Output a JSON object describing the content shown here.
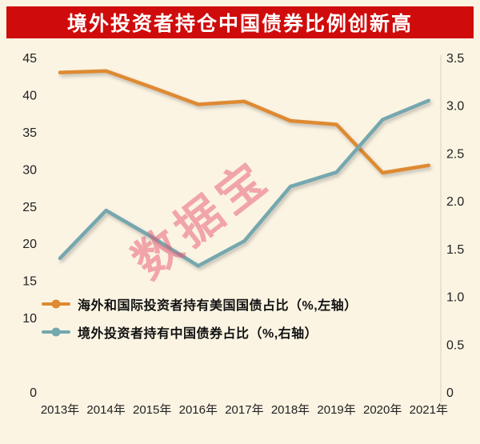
{
  "title": "境外投资者持仓中国债券比例创新高",
  "watermark": "数据宝",
  "colors": {
    "background": "#fbf4e3",
    "title_bg": "#cf0b0b",
    "title_text": "#ffffff",
    "series_us_treasury": "#de8a32",
    "series_cn_bond": "#74a7ae",
    "axis_text": "#222222",
    "legend_text": "#111111",
    "watermark_pink": "#e85470",
    "axis_line": "#d9d1bf"
  },
  "chart_data": {
    "type": "line",
    "title": "境外投资者持仓中国债券比例创新高",
    "categories": [
      "2013年",
      "2014年",
      "2015年",
      "2016年",
      "2017年",
      "2018年",
      "2019年",
      "2020年",
      "2021年"
    ],
    "series": [
      {
        "name": "海外和国际投资者持有美国国债占比（%,左轴）",
        "axis": "left",
        "color": "#de8a32",
        "values": [
          43,
          43.2,
          41,
          38.7,
          39.1,
          36.5,
          36,
          29.5,
          30.5
        ]
      },
      {
        "name": "境外投资者持有中国债券占比（%,右轴）",
        "axis": "right",
        "color": "#74a7ae",
        "values": [
          1.4,
          1.9,
          1.62,
          1.32,
          1.58,
          2.15,
          2.3,
          2.85,
          3.05
        ]
      }
    ],
    "left_axis": {
      "min": 0,
      "max": 45,
      "tick_values": [
        45,
        40,
        35,
        30,
        25,
        20,
        15,
        10,
        0
      ],
      "tick_labels": [
        "45",
        "40",
        "35",
        "30",
        "25",
        "20",
        "15",
        "10",
        "0"
      ]
    },
    "right_axis": {
      "min": 0,
      "max": 3.5,
      "tick_values": [
        3.5,
        3.0,
        2.5,
        2.0,
        1.5,
        1.0,
        0.5,
        0
      ],
      "tick_labels": [
        "3.5",
        "3.0",
        "2.5",
        "2.0",
        "1.5",
        "1.0",
        "0.5",
        "0"
      ]
    },
    "grid": false,
    "legend_position": "inside-bottom-left"
  }
}
